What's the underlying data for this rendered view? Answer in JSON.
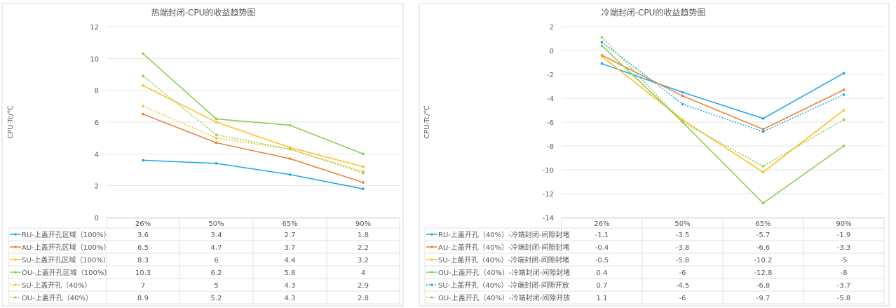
{
  "colors": {
    "blue": "#1aa7e8",
    "orange": "#ef7d31",
    "yellow": "#fdbf1b",
    "green": "#8ccc4c"
  },
  "chart_data": [
    {
      "type": "line",
      "title": "热端封闭-CPU的收益趋势图",
      "ylabel": "CPU-Tc/℃",
      "xlabel": "",
      "categories": [
        "26%",
        "50%",
        "65%",
        "90%"
      ],
      "ylim": [
        0,
        12
      ],
      "yticks": [
        0,
        2,
        4,
        6,
        8,
        10,
        12
      ],
      "grid": true,
      "legend": "data-table",
      "series": [
        {
          "name": "RU-上盖开孔区域（100%）",
          "values": [
            3.6,
            3.4,
            2.7,
            1.8
          ],
          "color": "#1aa7e8",
          "style": "solid"
        },
        {
          "name": "AU-上盖开孔区域（100%）",
          "values": [
            6.5,
            4.7,
            3.7,
            2.2
          ],
          "color": "#ef7d31",
          "style": "solid"
        },
        {
          "name": "SU-上盖开孔区域（100%）",
          "values": [
            8.3,
            6,
            4.4,
            3.2
          ],
          "color": "#fdbf1b",
          "style": "solid"
        },
        {
          "name": "OU-上盖开孔区域（100%）",
          "values": [
            10.3,
            6.2,
            5.8,
            4
          ],
          "color": "#8ccc4c",
          "style": "solid"
        },
        {
          "name": "SU-上盖开孔（40%）",
          "values": [
            7,
            5,
            4.3,
            2.9
          ],
          "color": "#fdbf1b",
          "style": "dotted"
        },
        {
          "name": "OU-上盖开孔（40%）",
          "values": [
            8.9,
            5.2,
            4.3,
            2.8
          ],
          "color": "#8ccc4c",
          "style": "dotted"
        }
      ]
    },
    {
      "type": "line",
      "title": "冷端封闭-CPU的收益趋势图",
      "ylabel": "CPU-Tc/℃",
      "xlabel": "",
      "categories": [
        "26%",
        "50%",
        "65%",
        "90%"
      ],
      "ylim": [
        -14,
        2
      ],
      "yticks": [
        -14,
        -12,
        -10,
        -8,
        -6,
        -4,
        -2,
        0,
        2
      ],
      "grid": true,
      "legend": "data-table",
      "series": [
        {
          "name": "RU-上盖开孔（40%）-冷端封闭-间隙封堵",
          "values": [
            -1.1,
            -3.5,
            -5.7,
            -1.9
          ],
          "color": "#1aa7e8",
          "style": "solid"
        },
        {
          "name": "AU-上盖开孔（40%）-冷端封闭-间隙封堵",
          "values": [
            -0.4,
            -3.8,
            -6.6,
            -3.3
          ],
          "color": "#ef7d31",
          "style": "solid"
        },
        {
          "name": "SU-上盖开孔（40%）-冷端封闭-间隙封堵",
          "values": [
            -0.5,
            -5.8,
            -10.2,
            -5
          ],
          "color": "#fdbf1b",
          "style": "solid"
        },
        {
          "name": "OU-上盖开孔（40%）-冷端封闭-间隙封堵",
          "values": [
            0.4,
            -6,
            -12.8,
            -8
          ],
          "color": "#8ccc4c",
          "style": "solid"
        },
        {
          "name": "SU-上盖开孔（40%）-冷端封闭-间隙开放",
          "values": [
            0.7,
            -4.5,
            -6.8,
            -3.7
          ],
          "color": "#1aa7e8",
          "style": "dotted"
        },
        {
          "name": "OU-上盖开孔（40%）-冷端封闭-间隙开放",
          "values": [
            1.1,
            -6,
            -9.7,
            -5.8
          ],
          "color": "#8ccc4c",
          "style": "dotted"
        }
      ]
    }
  ]
}
